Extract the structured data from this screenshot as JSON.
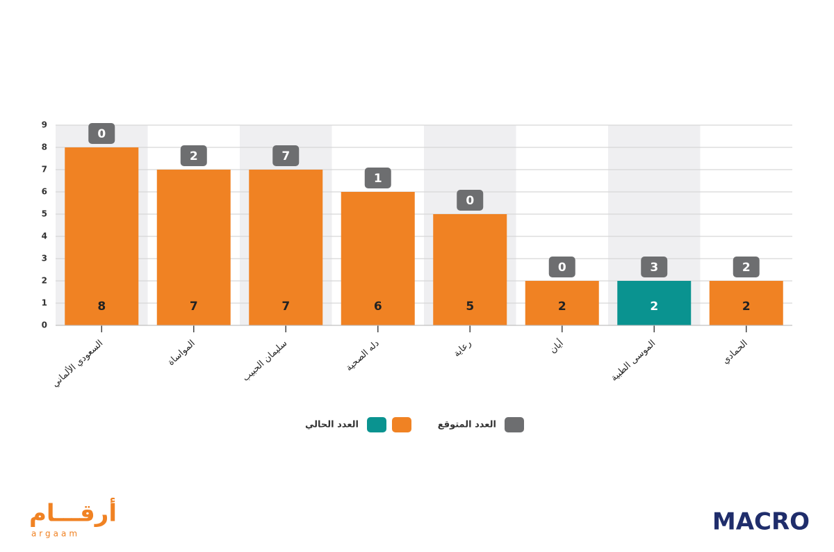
{
  "chart_data": {
    "type": "bar",
    "categories": [
      "السعودي الألماني",
      "المواساة",
      "سليمان الحبيب",
      "دله الصحية",
      "رعاية",
      "أيان",
      "الموسى الطبية",
      "الحمادي"
    ],
    "series": [
      {
        "name": "العدد الحالي",
        "colors": [
          "#f08223",
          "#f08223",
          "#f08223",
          "#f08223",
          "#f08223",
          "#f08223",
          "#0a9390",
          "#f08223"
        ],
        "values": [
          8,
          7,
          7,
          6,
          5,
          2,
          2,
          2
        ]
      },
      {
        "name": "العدد المتوقع",
        "color": "#6d6e70",
        "values": [
          0,
          2,
          7,
          1,
          0,
          0,
          3,
          2
        ]
      }
    ],
    "ylim": [
      0,
      9
    ],
    "yticks": [
      0,
      1,
      2,
      3,
      4,
      5,
      6,
      7,
      8,
      9
    ],
    "grid": true,
    "band_color": "#efeff1"
  },
  "logos": {
    "left": "أرقـــام",
    "left_sub": "argaam",
    "right": "MACRO"
  }
}
